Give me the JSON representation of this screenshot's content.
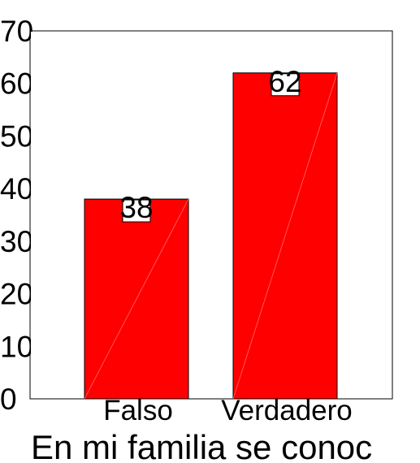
{
  "chart_data": {
    "type": "bar",
    "categories": [
      "Falso",
      "Verdadero"
    ],
    "values": [
      38,
      62
    ],
    "data_labels": [
      "38",
      "62"
    ],
    "y_ticks": [
      "0",
      "10",
      "20",
      "30",
      "40",
      "50",
      "60",
      "70"
    ],
    "ylim": [
      0,
      70
    ],
    "xlabel": "En mi familia se conoc",
    "ylabel": "",
    "title": "",
    "grid": false,
    "legend": "none",
    "bar_color": "#ff0000"
  }
}
